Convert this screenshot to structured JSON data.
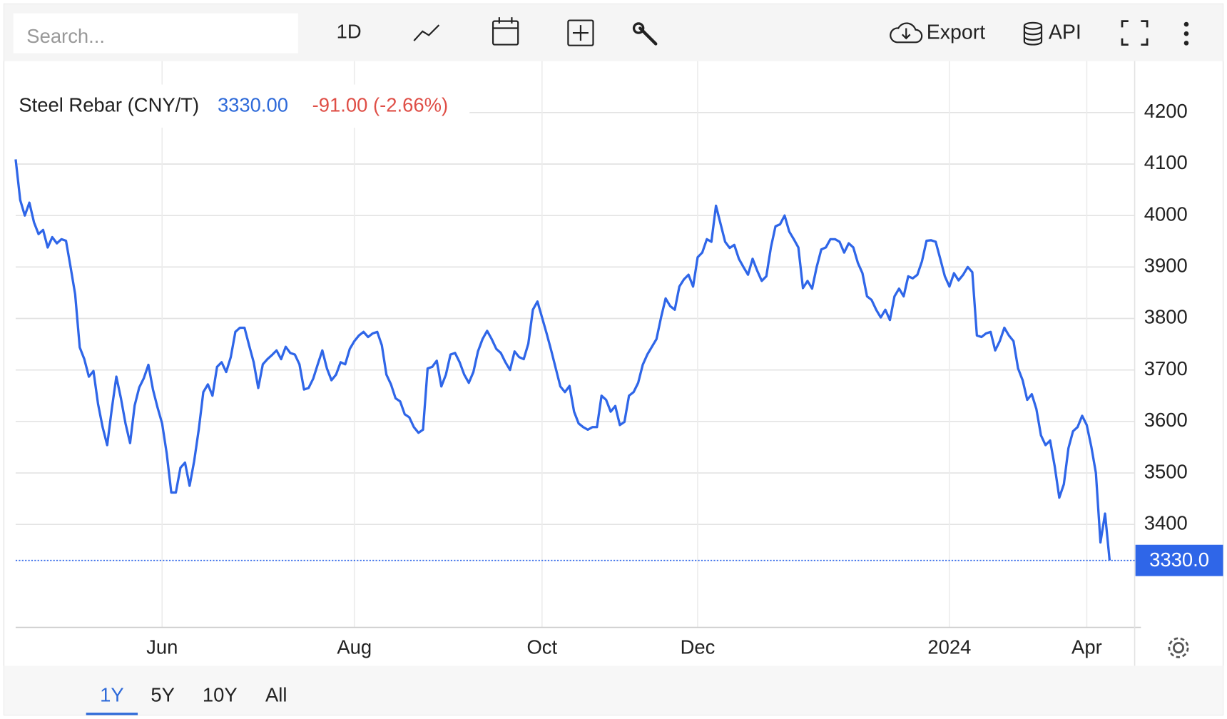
{
  "toolbar": {
    "search_placeholder": "Search...",
    "interval": "1D",
    "export": "Export",
    "api": "API"
  },
  "range_selector": {
    "options": [
      "1Y",
      "5Y",
      "10Y",
      "All"
    ]
  },
  "chart_data": {
    "type": "line",
    "title": "Steel Rebar (CNY/T)",
    "price": "3330.00",
    "change": "-91.00 (-2.66%)",
    "last_price": {
      "value": 3330,
      "label": "3330.0"
    },
    "categories": [
      null,
      null,
      null,
      null,
      null,
      null,
      null,
      null,
      null,
      null,
      null,
      null,
      null,
      null,
      null,
      null,
      null,
      null,
      null,
      null,
      null,
      null,
      null,
      null,
      null,
      null,
      null,
      null,
      null,
      null,
      null,
      null,
      "Jun",
      null,
      null,
      null,
      null,
      null,
      null,
      null,
      null,
      null,
      null,
      null,
      null,
      null,
      null,
      null,
      null,
      null,
      null,
      null,
      null,
      null,
      null,
      null,
      null,
      null,
      null,
      null,
      null,
      null,
      null,
      null,
      null,
      null,
      null,
      null,
      null,
      null,
      null,
      null,
      null,
      null,
      "Aug",
      null,
      null,
      null,
      null,
      null,
      null,
      null,
      null,
      null,
      null,
      null,
      null,
      null,
      null,
      null,
      null,
      null,
      null,
      null,
      null,
      null,
      null,
      null,
      null,
      null,
      null,
      null,
      null,
      null,
      null,
      null,
      null,
      null,
      null,
      null,
      null,
      null,
      null,
      null,
      null,
      "Oct",
      null,
      null,
      null,
      null,
      null,
      null,
      null,
      null,
      null,
      null,
      null,
      null,
      null,
      null,
      null,
      null,
      null,
      null,
      null,
      null,
      null,
      null,
      null,
      null,
      null,
      null,
      null,
      null,
      null,
      null,
      null,
      null,
      null,
      "Dec",
      null,
      null,
      null,
      null,
      null,
      null,
      null,
      null,
      null,
      null,
      null,
      null,
      null,
      null,
      null,
      null,
      null,
      null,
      null,
      null,
      null,
      null,
      null,
      null,
      null,
      null,
      null,
      null,
      null,
      null,
      null,
      null,
      null,
      null,
      null,
      null,
      null,
      null,
      null,
      null,
      null,
      null,
      null,
      null,
      null,
      null,
      null,
      null,
      null,
      null,
      null,
      null,
      null,
      null,
      "2024",
      null,
      null,
      null,
      null,
      null,
      null,
      null,
      null,
      null,
      null,
      null,
      null,
      null,
      null,
      null,
      null,
      null,
      null,
      null,
      null,
      null,
      null,
      null,
      null,
      null,
      null,
      null,
      null,
      null,
      "Apr",
      null,
      null,
      null,
      null,
      null
    ],
    "series": [
      {
        "name": "Steel Rebar",
        "color": "#2f66e8",
        "values": [
          4109,
          4030,
          4000,
          4025,
          3987,
          3964,
          3972,
          3938,
          3958,
          3946,
          3954,
          3951,
          3900,
          3847,
          3744,
          3721,
          3687,
          3698,
          3634,
          3589,
          3554,
          3624,
          3687,
          3645,
          3596,
          3558,
          3631,
          3666,
          3684,
          3710,
          3662,
          3627,
          3596,
          3538,
          3462,
          3462,
          3510,
          3520,
          3475,
          3523,
          3584,
          3657,
          3672,
          3650,
          3706,
          3715,
          3696,
          3725,
          3774,
          3782,
          3782,
          3748,
          3715,
          3665,
          3711,
          3721,
          3729,
          3738,
          3721,
          3745,
          3733,
          3730,
          3711,
          3662,
          3665,
          3683,
          3711,
          3738,
          3703,
          3680,
          3691,
          3715,
          3711,
          3741,
          3756,
          3767,
          3774,
          3764,
          3771,
          3774,
          3748,
          3691,
          3672,
          3645,
          3639,
          3614,
          3608,
          3589,
          3578,
          3584,
          3703,
          3706,
          3718,
          3668,
          3691,
          3730,
          3733,
          3715,
          3691,
          3675,
          3696,
          3736,
          3760,
          3776,
          3760,
          3741,
          3733,
          3715,
          3700,
          3736,
          3725,
          3721,
          3751,
          3817,
          3833,
          3802,
          3771,
          3738,
          3703,
          3668,
          3657,
          3669,
          3619,
          3596,
          3589,
          3584,
          3589,
          3589,
          3650,
          3642,
          3619,
          3630,
          3593,
          3599,
          3650,
          3657,
          3675,
          3710,
          3730,
          3745,
          3760,
          3802,
          3839,
          3824,
          3817,
          3862,
          3876,
          3885,
          3862,
          3919,
          3928,
          3954,
          3949,
          4019,
          3984,
          3949,
          3937,
          3943,
          3916,
          3900,
          3885,
          3916,
          3893,
          3873,
          3882,
          3938,
          3979,
          3983,
          4000,
          3969,
          3954,
          3938,
          3859,
          3873,
          3858,
          3900,
          3934,
          3938,
          3954,
          3954,
          3949,
          3928,
          3946,
          3938,
          3908,
          3888,
          3843,
          3836,
          3817,
          3802,
          3817,
          3797,
          3843,
          3858,
          3843,
          3882,
          3878,
          3885,
          3911,
          3951,
          3952,
          3949,
          3916,
          3882,
          3862,
          3888,
          3874,
          3885,
          3900,
          3890,
          3767,
          3764,
          3771,
          3774,
          3738,
          3756,
          3782,
          3767,
          3756,
          3703,
          3680,
          3642,
          3653,
          3624,
          3573,
          3554,
          3563,
          3513,
          3452,
          3478,
          3548,
          3581,
          3589,
          3611,
          3593,
          3551,
          3500,
          3365,
          3421,
          3330
        ]
      }
    ],
    "ylim": [
      3200,
      4300
    ],
    "yticks": [
      3400,
      3500,
      3600,
      3700,
      3800,
      3900,
      4000,
      4100,
      4200
    ],
    "grid": true,
    "y_axis_side": "right"
  }
}
